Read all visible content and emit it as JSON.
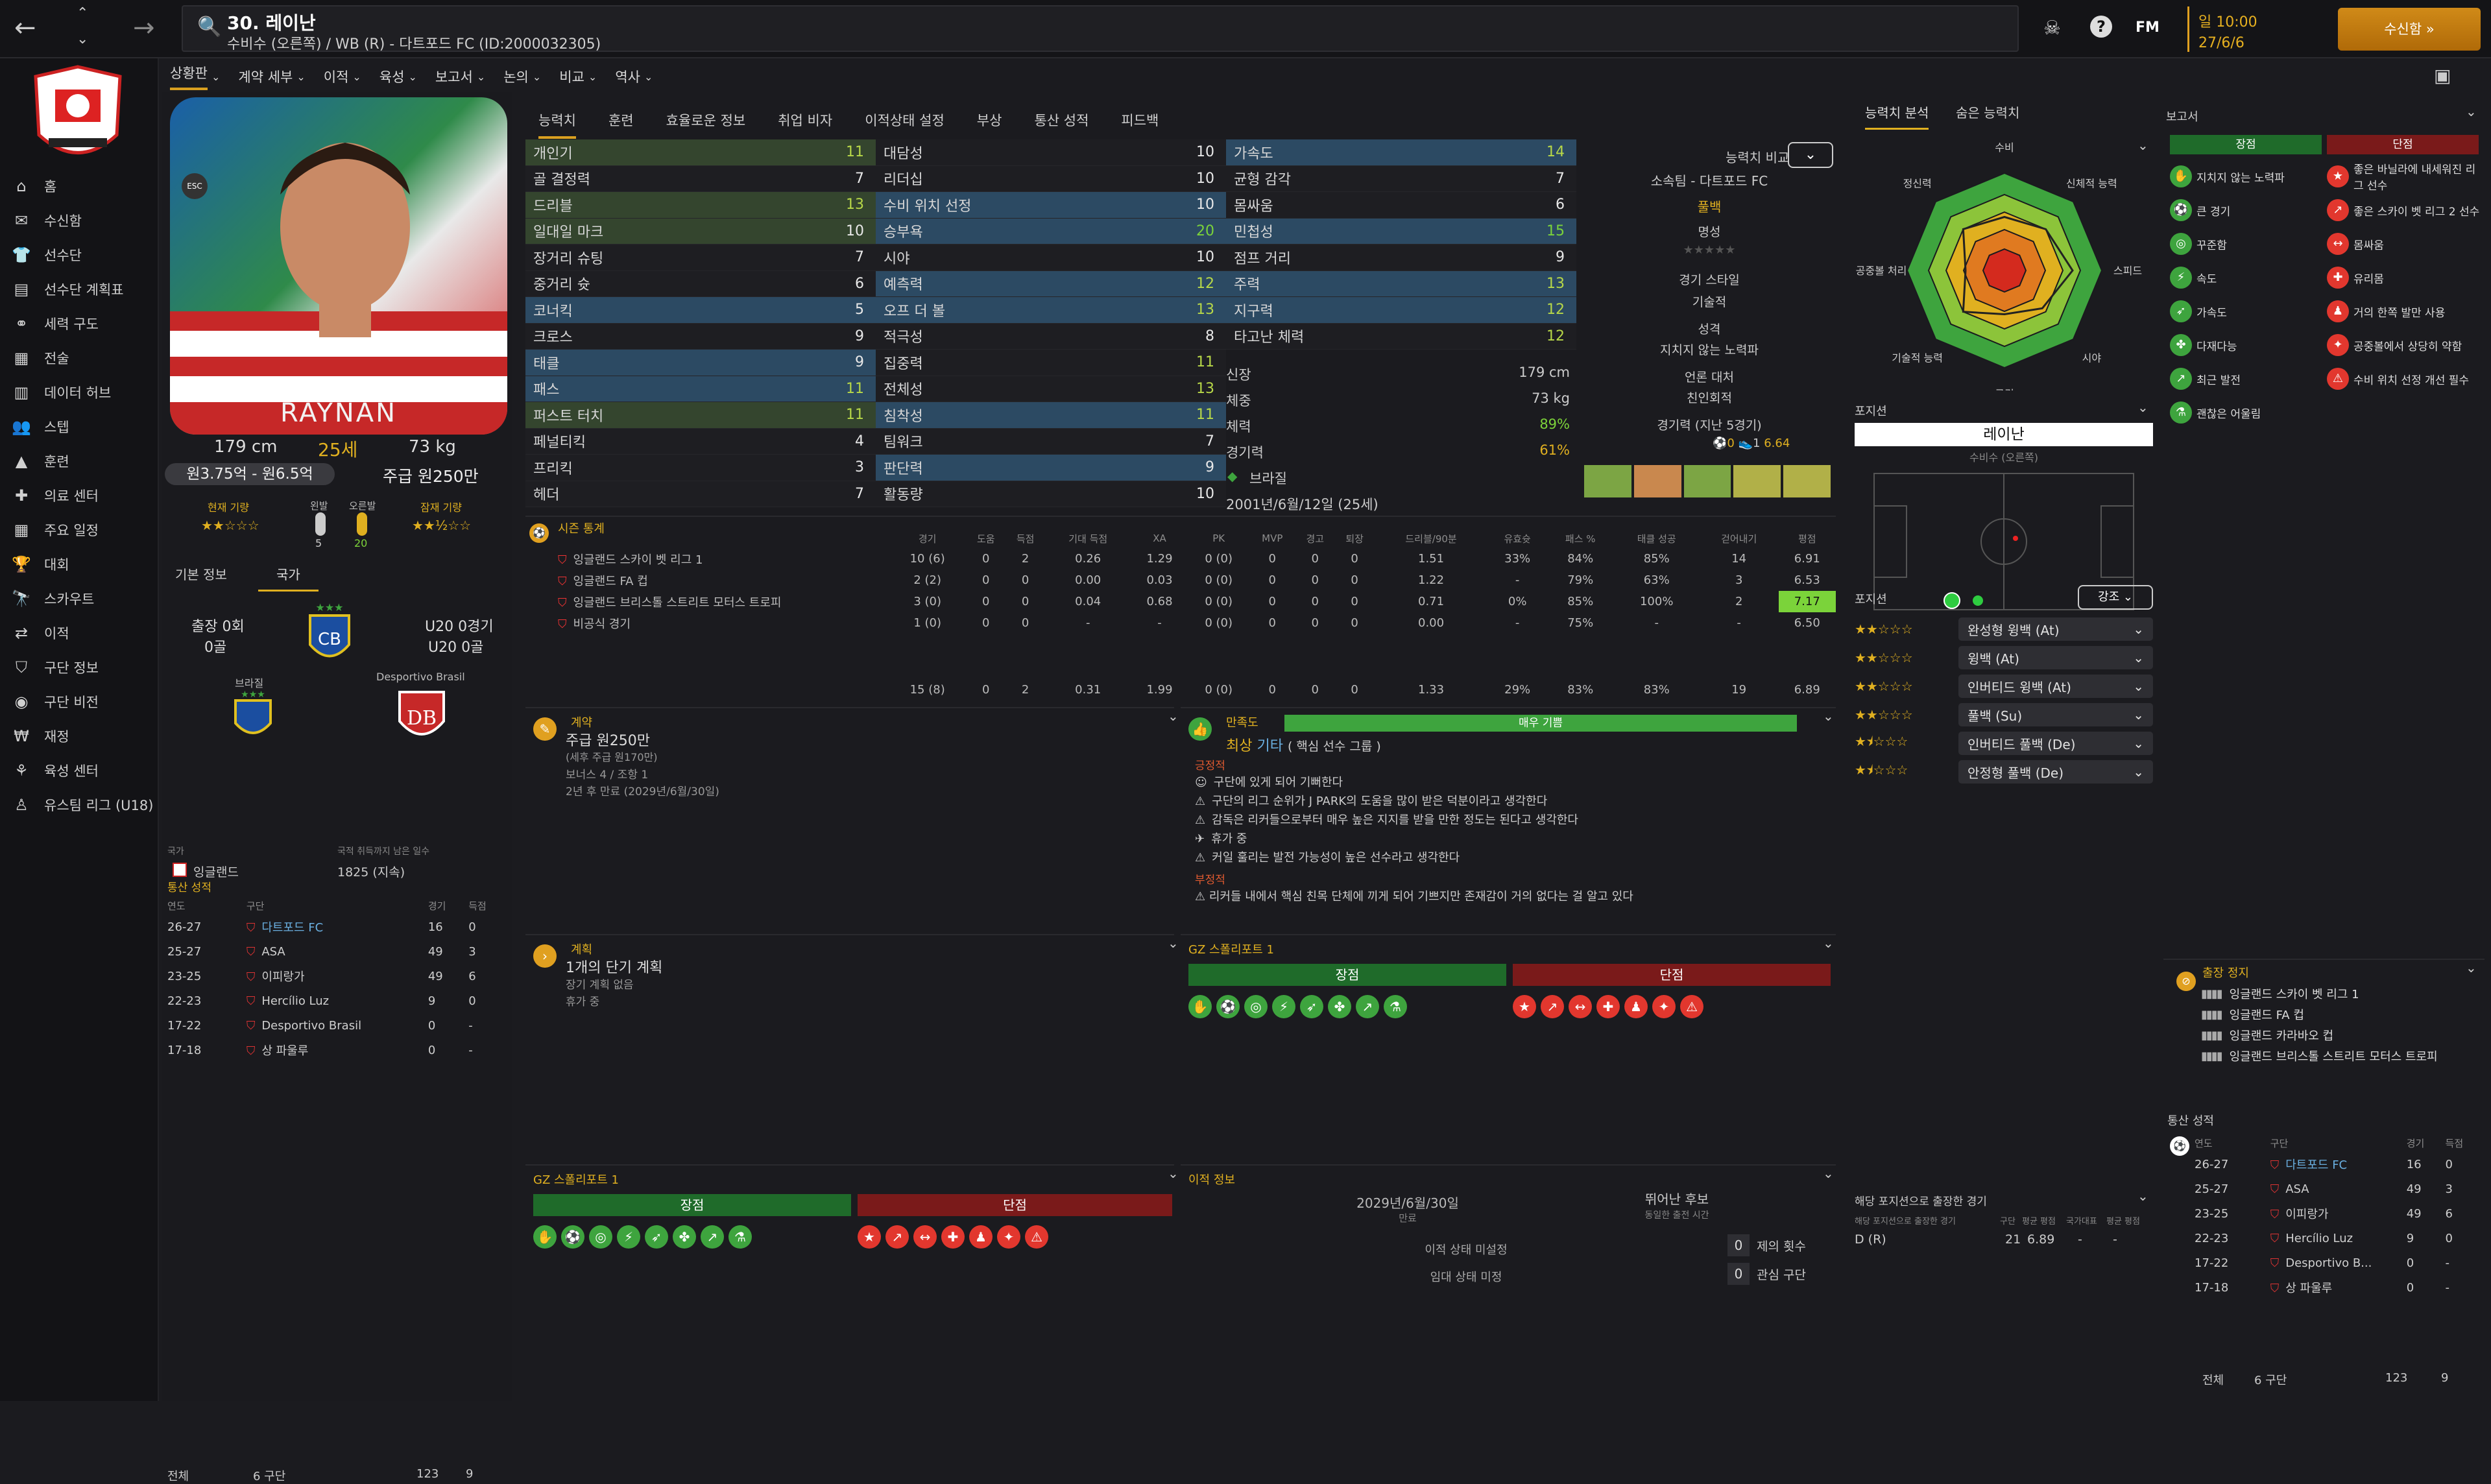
{
  "topbar": {
    "player_number_name": "30. 레이난",
    "subtitle": "수비수 (오른쪽) / WB (R) - 다트포드 FC (ID:2000032305)",
    "fm": "FM",
    "date_weekday": "일 10:00",
    "date": "27/6/6",
    "continue": "수신함"
  },
  "sidebar": {
    "items": [
      {
        "label": "홈",
        "icon": "home-icon"
      },
      {
        "label": "수신함",
        "icon": "mail-icon"
      },
      {
        "label": "선수단",
        "icon": "shirt-icon"
      },
      {
        "label": "선수단 계획표",
        "icon": "clipboard-icon"
      },
      {
        "label": "세력 구도",
        "icon": "network-icon"
      },
      {
        "label": "전술",
        "icon": "board-icon"
      },
      {
        "label": "데이터 허브",
        "icon": "chart-icon"
      },
      {
        "label": "스텝",
        "icon": "people-icon"
      },
      {
        "label": "훈련",
        "icon": "cone-icon"
      },
      {
        "label": "의료 센터",
        "icon": "medical-icon"
      },
      {
        "label": "주요 일정",
        "icon": "calendar-icon"
      },
      {
        "label": "대회",
        "icon": "trophy-icon"
      },
      {
        "label": "스카우트",
        "icon": "scout-icon"
      },
      {
        "label": "이적",
        "icon": "transfer-icon"
      },
      {
        "label": "구단 정보",
        "icon": "shield-icon"
      },
      {
        "label": "구단 비전",
        "icon": "vision-icon"
      },
      {
        "label": "재정",
        "icon": "money-icon"
      },
      {
        "label": "육성 센터",
        "icon": "growth-icon"
      },
      {
        "label": "유스팀 리그 (U18)",
        "icon": "youth-icon"
      }
    ]
  },
  "menu": [
    "상황판",
    "계약 세부",
    "이적",
    "육성",
    "보고서",
    "논의",
    "비교",
    "역사"
  ],
  "profile": {
    "height": "179 cm",
    "age": "25세",
    "weight": "73 kg",
    "value": "원3.75억 - 원6.5억",
    "wage": "주급 원250만",
    "current_ability": "현재 기량",
    "potential": "잠재 기량",
    "left_foot": "왼발",
    "right_foot": "오른발",
    "left_val": "5",
    "right_val": "20",
    "photo_text": "RAYNAN"
  },
  "profile_tabs": [
    "기본 정보",
    "국가"
  ],
  "nation": {
    "caps": "출장 0회",
    "goals": "0골",
    "u20_caps": "U20 0경기",
    "u20_goals": "U20 0골",
    "nation_name": "브라질",
    "club_name": "Desportivo Brasil",
    "label_country": "국가",
    "label_days": "국적 취득까지 남은 일수",
    "country": "잉글랜드",
    "days": "1825 (지속)"
  },
  "career_left": {
    "title": "통산 성적",
    "headers": [
      "연도",
      "구단",
      "경기",
      "득점"
    ],
    "rows": [
      [
        "26-27",
        "다트포드 FC",
        "16",
        "0"
      ],
      [
        "25-27",
        "ASA",
        "49",
        "3"
      ],
      [
        "23-25",
        "이피랑가",
        "49",
        "6"
      ],
      [
        "22-23",
        "Hercílio Luz",
        "9",
        "0"
      ],
      [
        "17-22",
        "Desportivo Brasil",
        "0",
        "-"
      ],
      [
        "17-18",
        "상 파울루",
        "0",
        "-"
      ]
    ],
    "total_label": "전체",
    "total_clubs": "6 구단",
    "total_apps": "123",
    "total_goals": "9"
  },
  "attr_tabs": [
    "능력치",
    "훈련",
    "효율로운 정보",
    "취업 비자",
    "이적상태 설정",
    "부상",
    "통산 성적",
    "피드백"
  ],
  "attributes": {
    "technical": [
      [
        "개인기",
        "11"
      ],
      [
        "골 결정력",
        "7"
      ],
      [
        "드리블",
        "13"
      ],
      [
        "일대일 마크",
        "10"
      ],
      [
        "장거리 슈팅",
        "7"
      ],
      [
        "중거리 슛",
        "6"
      ],
      [
        "코너킥",
        "5"
      ],
      [
        "크로스",
        "9"
      ],
      [
        "태클",
        "9"
      ],
      [
        "패스",
        "11"
      ],
      [
        "퍼스트 터치",
        "11"
      ],
      [
        "페널티킥",
        "4"
      ],
      [
        "프리킥",
        "3"
      ],
      [
        "헤더",
        "7"
      ]
    ],
    "mental": [
      [
        "대담성",
        "10"
      ],
      [
        "리더십",
        "10"
      ],
      [
        "수비 위치 선정",
        "10"
      ],
      [
        "승부욕",
        "20"
      ],
      [
        "시야",
        "10"
      ],
      [
        "예측력",
        "12"
      ],
      [
        "오프 더 볼",
        "13"
      ],
      [
        "적극성",
        "8"
      ],
      [
        "집중력",
        "11"
      ],
      [
        "전체성",
        "13"
      ],
      [
        "침착성",
        "11"
      ],
      [
        "팀워크",
        "7"
      ],
      [
        "판단력",
        "9"
      ],
      [
        "활동량",
        "10"
      ]
    ],
    "physical": [
      [
        "가속도",
        "14"
      ],
      [
        "균형 감각",
        "7"
      ],
      [
        "몸싸움",
        "6"
      ],
      [
        "민첩성",
        "15"
      ],
      [
        "점프 거리",
        "9"
      ],
      [
        "주력",
        "13"
      ],
      [
        "지구력",
        "12"
      ],
      [
        "타고난 체력",
        "12"
      ]
    ]
  },
  "info": {
    "label_height": "신장",
    "height": "179 cm",
    "label_weight": "체중",
    "weight": "73 kg",
    "label_condition": "체력",
    "condition": "89%",
    "label_sharpness": "경기력",
    "sharpness": "61%",
    "nation": "브라질",
    "dob": "2001년/6월/12일 (25세)"
  },
  "compare": {
    "title": "능력치 비교",
    "club": "소속팀 - 다트포드 FC",
    "position": "풀백",
    "label_rep": "명성",
    "label_style": "경기 스타일",
    "style": "기술적",
    "label_personality": "성격",
    "personality": "지치지 않는 노력파",
    "label_media": "언론 대처",
    "media": "친인회적",
    "label_form": "경기력 (지난 5경기)",
    "goals": "0",
    "assists": "1",
    "rating": "6.64"
  },
  "analysis": {
    "tabs": [
      "능력치 분석",
      "숨은 능력치"
    ],
    "labels": [
      "수비",
      "신체적 능력",
      "스피드",
      "시야",
      "공격",
      "기술적 능력",
      "공중볼 처리",
      "정신력"
    ],
    "values": [
      0.55,
      0.6,
      0.7,
      0.55,
      0.45,
      0.6,
      0.4,
      0.6
    ]
  },
  "position": {
    "title": "포지션",
    "name": "레이난",
    "role": "수비수 (오른쪽)",
    "roles_title": "포지션",
    "roles_highlight": "강조",
    "roles": [
      [
        "완성형 윙백 (At)",
        "2"
      ],
      [
        "윙백 (At)",
        "2"
      ],
      [
        "인버티드 윙백 (At)",
        "2"
      ],
      [
        "풀백 (Su)",
        "2"
      ],
      [
        "인버티드 풀백 (De)",
        "1.5"
      ],
      [
        "안정형 풀백 (De)",
        "1.5"
      ]
    ]
  },
  "stats": {
    "title": "시즌 통계",
    "headers": [
      "경기",
      "도움",
      "득점",
      "기대 득점",
      "XA",
      "PK",
      "MVP",
      "경고",
      "퇴장",
      "드리블/90분",
      "유효슛",
      "패스 %",
      "태클 성공",
      "걷어내기",
      "평점"
    ],
    "rows": [
      {
        "comp": "잉글랜드 스카이 벳 리그 1",
        "vals": [
          "10 (6)",
          "0",
          "2",
          "0.26",
          "1.29",
          "0 (0)",
          "0",
          "0",
          "0",
          "1.51",
          "33%",
          "84%",
          "85%",
          "14",
          "6.91"
        ]
      },
      {
        "comp": "잉글랜드 FA 컵",
        "vals": [
          "2 (2)",
          "0",
          "0",
          "0.00",
          "0.03",
          "0 (0)",
          "0",
          "0",
          "0",
          "1.22",
          "-",
          "79%",
          "63%",
          "3",
          "6.53"
        ]
      },
      {
        "comp": "잉글랜드 브리스톨 스트리트 모터스 트로피",
        "vals": [
          "3 (0)",
          "0",
          "0",
          "0.04",
          "0.68",
          "0 (0)",
          "0",
          "0",
          "0",
          "0.71",
          "0%",
          "85%",
          "100%",
          "2",
          "7.17"
        ]
      },
      {
        "comp": "비공식 경기",
        "vals": [
          "1 (0)",
          "0",
          "0",
          "-",
          "-",
          "0 (0)",
          "0",
          "0",
          "0",
          "0.00",
          "-",
          "75%",
          "-",
          "-",
          "6.50"
        ]
      }
    ],
    "total": [
      "15 (8)",
      "0",
      "2",
      "0.31",
      "1.99",
      "0 (0)",
      "0",
      "0",
      "0",
      "1.33",
      "29%",
      "83%",
      "83%",
      "19",
      "6.89"
    ]
  },
  "contract": {
    "title": "계약",
    "wage": "주급 원250만",
    "wage_sub": "(세후 주급 원170만)",
    "bonus": "보너스 4 / 조항 1",
    "expiry": "2년 후 만료 (2029년/6월/30일)"
  },
  "happiness": {
    "title": "만족도",
    "level": "매우 기쁨",
    "importance": "최상",
    "tag": "기타",
    "status": "( 핵심 선수 그룹 )",
    "positive": "긍정적",
    "negative": "부정적",
    "items": [
      "구단에 있게 되어 기뻐한다",
      "구단의 리그 순위가 J PARK의 도움을 많이 받은 덕분이라고 생각한다",
      "감독은 리커들으로부터 매우 높은 지지를 받을 만한 정도는 된다고 생각한다",
      "휴가 중",
      "커일 훌리는 발전 가능성이 높은 선수라고 생각한다"
    ],
    "neg_item": "리커들 내에서 핵심 친목 단체에 끼게 되어 기쁘지만 존재감이 거의 없다는 걸 알고 있다"
  },
  "plans": {
    "title": "계획",
    "count": "1개의 단기 계획",
    "long": "장기 계획 없음",
    "holiday": "휴가 중"
  },
  "gz1": {
    "title": "GZ 스폴리포트 1",
    "strengths": "장점",
    "weaknesses": "단점"
  },
  "gz2": {
    "title": "GZ 스폴리포트 1",
    "strengths": "장점",
    "weaknesses": "단점"
  },
  "transfer": {
    "title": "이적 정보",
    "contract_end": "2029년/6월/30일",
    "contract_end_label": "만료",
    "interest_label": "뛰어난 후보",
    "interest_sub": "동일한 출전 시간",
    "status1": "이적 상태 미설정",
    "status2": "임대 상태 미정",
    "offers": "0",
    "offers_label": "제의 횟수",
    "clubs": "0",
    "clubs_label": "관심 구단"
  },
  "report": {
    "title": "보고서",
    "strengths": "장점",
    "weaknesses": "단점",
    "pros": [
      "지치지 않는 노력파",
      "큰 경기",
      "꾸준함",
      "속도",
      "가속도",
      "다재다능",
      "최근 발전",
      "괜찮은 어울림"
    ],
    "cons": [
      "좋은 바닐라에 내세워진 리그 선수",
      "좋은 스카이 벳 리그 2 선수",
      "몸싸움",
      "유리몸",
      "거의 한쪽 발만 사용",
      "공중볼에서 상당히 약함",
      "수비 위치 선정 개선 필수"
    ]
  },
  "suspension": {
    "title": "출장 정지",
    "items": [
      "잉글랜드 스카이 벳 리그 1",
      "잉글랜드 FA 컵",
      "잉글랜드 카라바오 컵",
      "잉글랜드 브리스톨 스트리트 모터스 트로피"
    ]
  },
  "career_right": {
    "title": "통산 성적",
    "headers": [
      "연도",
      "구단",
      "경기",
      "득점"
    ],
    "rows": [
      [
        "26-27",
        "다트포드 FC",
        "16",
        "0"
      ],
      [
        "25-27",
        "ASA",
        "49",
        "3"
      ],
      [
        "23-25",
        "이피랑가",
        "49",
        "6"
      ],
      [
        "22-23",
        "Hercílio Luz",
        "9",
        "0"
      ],
      [
        "17-22",
        "Desportivo B...",
        "0",
        "-"
      ],
      [
        "17-18",
        "상 파울루",
        "0",
        "-"
      ]
    ],
    "total_label": "전체",
    "total_clubs": "6 구단",
    "total_apps": "123",
    "total_goals": "9"
  },
  "pos_games": {
    "title": "해당 포지션으로 출장한 경기",
    "sub": "해당 포지션으로 출장한 경기",
    "h_club": "구단",
    "h_rating": "평균 평점",
    "h_nation": "국가대표",
    "h_avg": "평균 평점",
    "pos": "D (R)",
    "apps": "21",
    "rating": "6.89",
    "nat": "-",
    "avg": "-"
  }
}
